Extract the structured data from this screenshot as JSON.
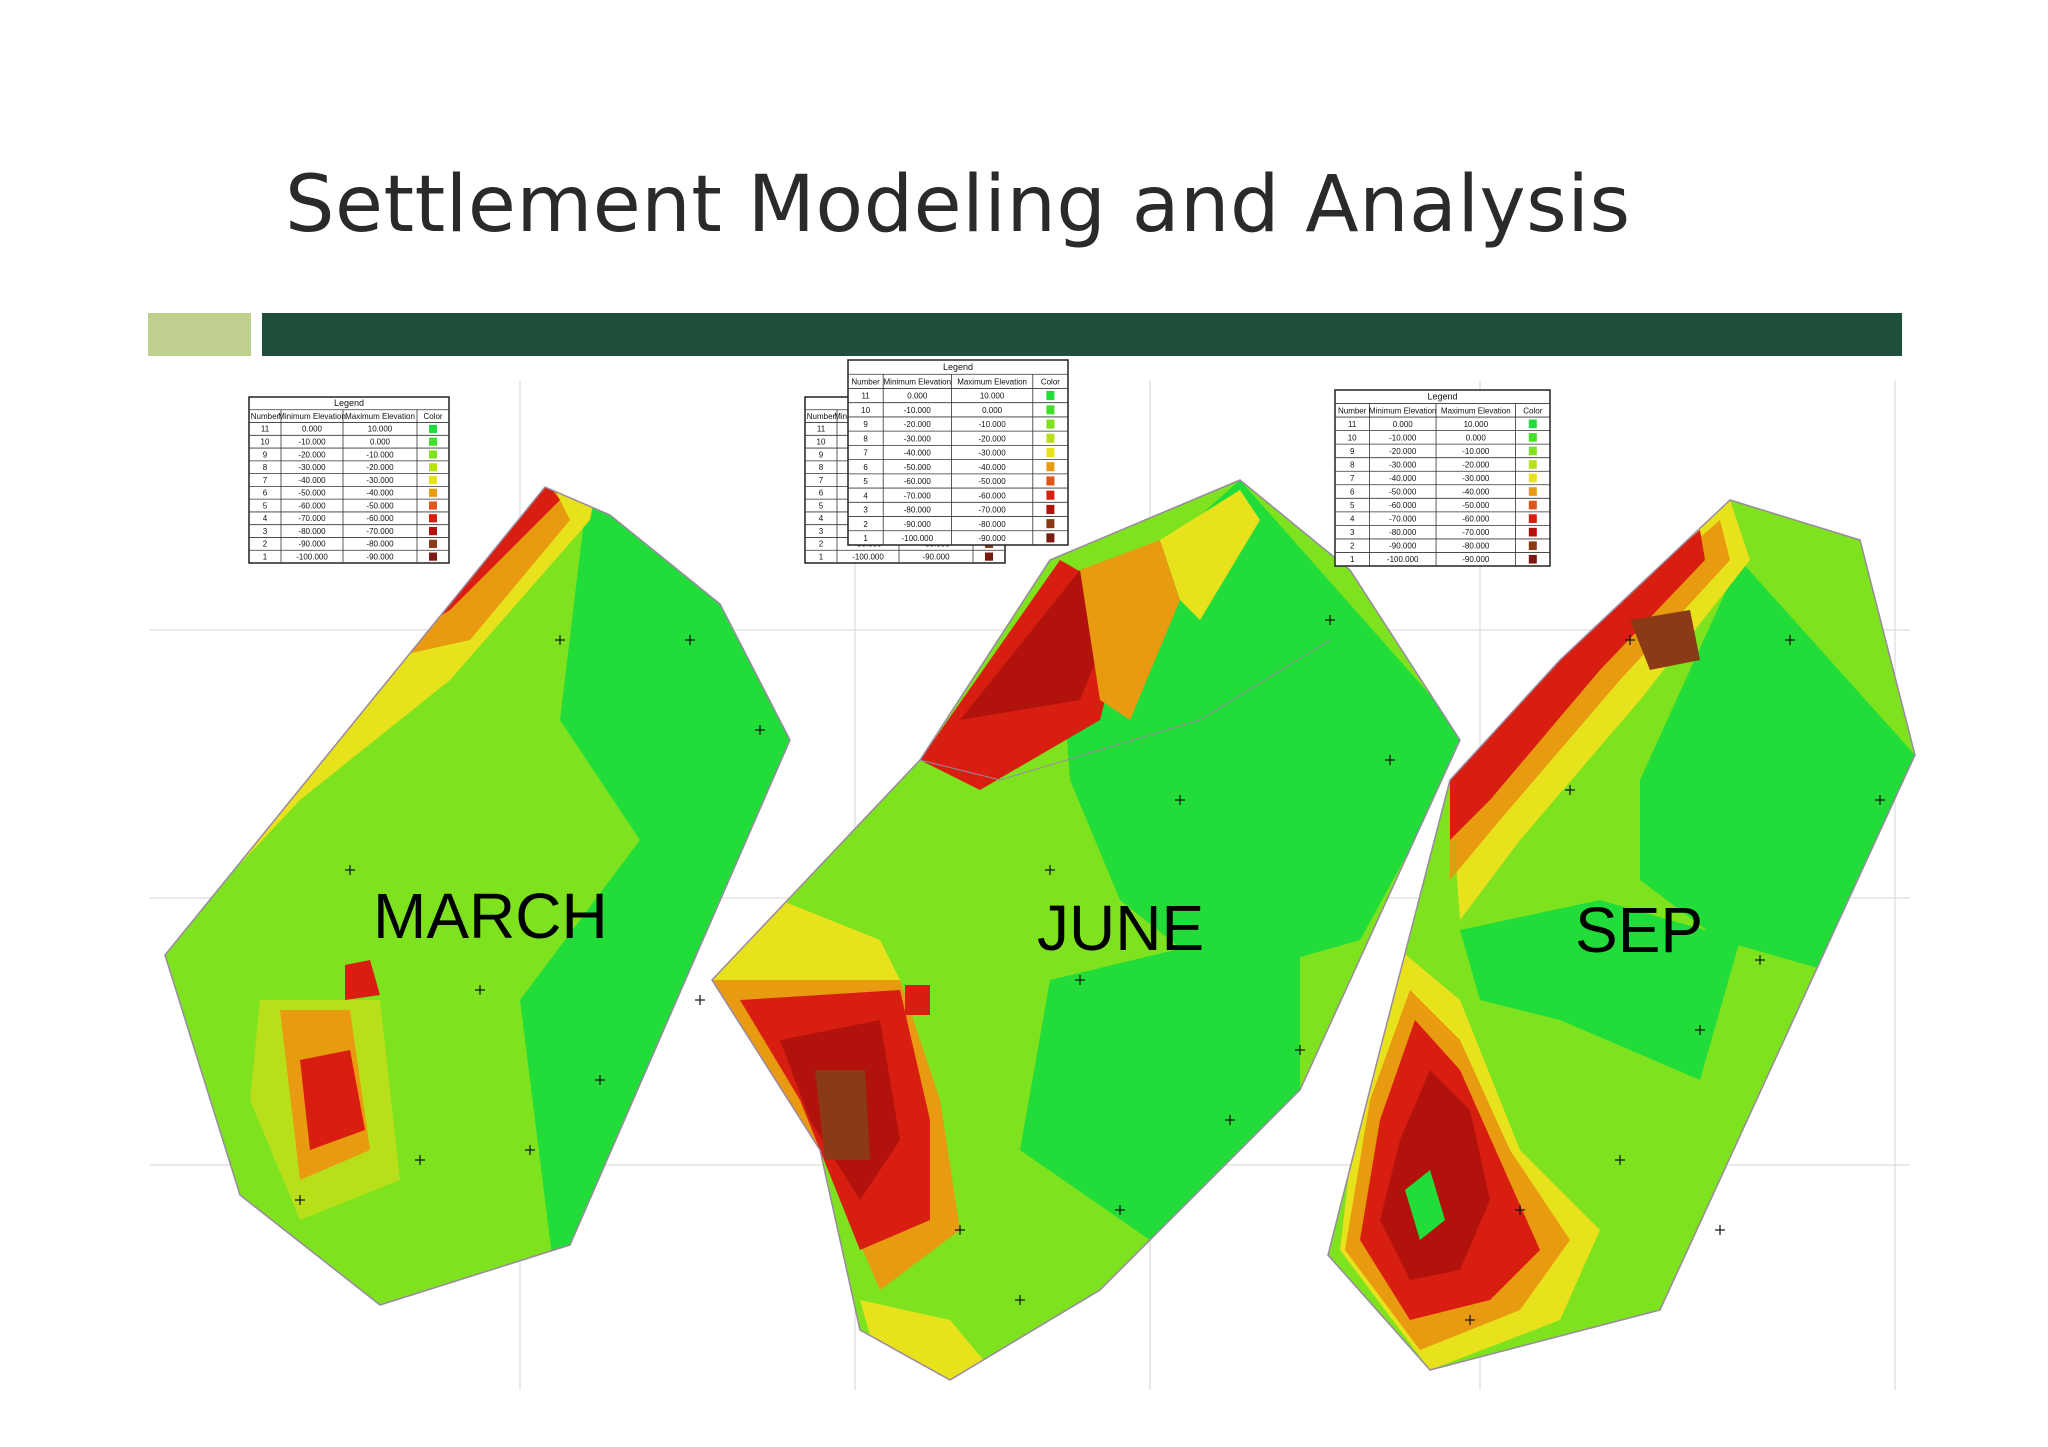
{
  "slide": {
    "title": "Settlement Modeling and Analysis",
    "colors": {
      "title_text": "#2a2a2a",
      "accent_block": "#bfcf8e",
      "accent_bar": "#1e4f3a"
    }
  },
  "maps": [
    {
      "label": "MARCH"
    },
    {
      "label": "JUNE"
    },
    {
      "label": "SEP"
    }
  ],
  "palette": {
    "bright_green": "#22dc3a",
    "green": "#7ee21e",
    "yellow_green": "#b8e01a",
    "yellow": "#e8e21c",
    "orange": "#e89a10",
    "red_orange": "#e2551a",
    "red": "#d81e10",
    "dark_red": "#b2120c",
    "brown": "#8a3a14"
  },
  "legend": {
    "title": "Legend",
    "headers": [
      "Number",
      "Minimum Elevation",
      "Maximum Elevation",
      "Color"
    ],
    "rows": [
      [
        "11",
        "0.000",
        "10.000",
        "#22dc3a"
      ],
      [
        "10",
        "-10.000",
        "0.000",
        "#44e02a"
      ],
      [
        "9",
        "-20.000",
        "-10.000",
        "#7ee21e"
      ],
      [
        "8",
        "-30.000",
        "-20.000",
        "#b8e01a"
      ],
      [
        "7",
        "-40.000",
        "-30.000",
        "#e8e21c"
      ],
      [
        "6",
        "-50.000",
        "-40.000",
        "#e89a10"
      ],
      [
        "5",
        "-60.000",
        "-50.000",
        "#e2551a"
      ],
      [
        "4",
        "-70.000",
        "-60.000",
        "#d81e10"
      ],
      [
        "3",
        "-80.000",
        "-70.000",
        "#b2120c"
      ],
      [
        "2",
        "-90.000",
        "-80.000",
        "#8a3a14"
      ],
      [
        "1",
        "-100.000",
        "-90.000",
        "#7a1a10"
      ]
    ]
  }
}
